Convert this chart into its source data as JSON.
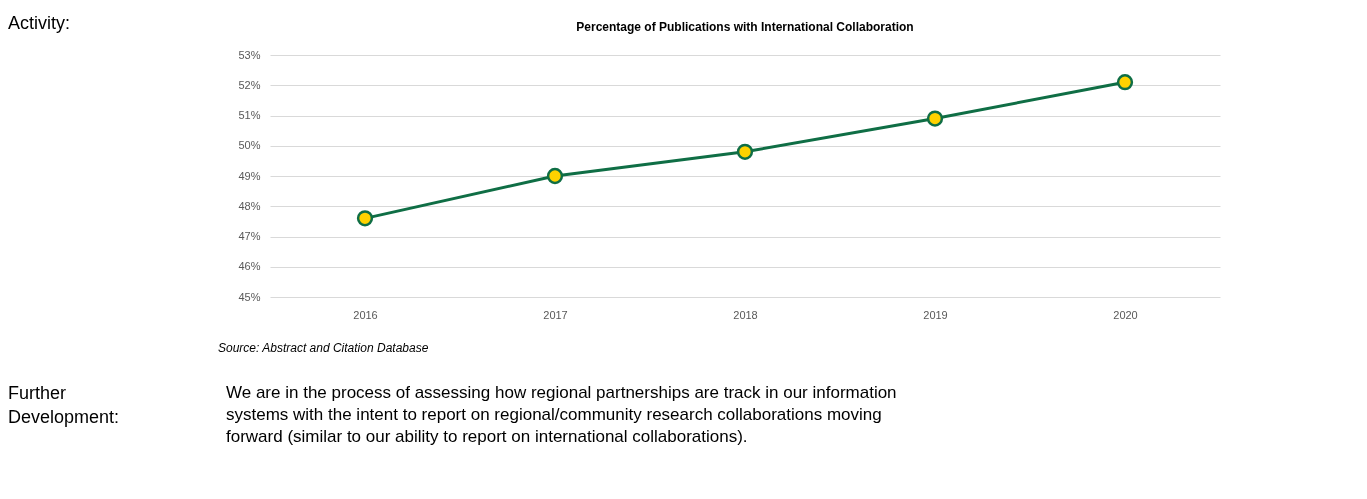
{
  "chart_data": {
    "type": "line",
    "title": "Percentage of Publications with International Collaboration",
    "categories": [
      "2016",
      "2017",
      "2018",
      "2019",
      "2020"
    ],
    "series": [
      {
        "color": "#0f6e45",
        "values": [
          47.6,
          49.0,
          49.8,
          50.9,
          52.1
        ]
      }
    ],
    "ylim": [
      45,
      53
    ],
    "yticks": [
      {
        "value": 45,
        "label": "45%"
      },
      {
        "value": 46,
        "label": "46%"
      },
      {
        "value": 47,
        "label": "47%"
      },
      {
        "value": 48,
        "label": "48%"
      },
      {
        "value": 49,
        "label": "49%"
      },
      {
        "value": 50,
        "label": "50%"
      },
      {
        "value": 51,
        "label": "51%"
      },
      {
        "value": 52,
        "label": "52%"
      },
      {
        "value": 53,
        "label": "53%"
      }
    ],
    "grid": "y",
    "marker": "circle",
    "line_style": "solid",
    "annotations": [
      "Activity:",
      "Source: Abstract and Citation Database",
      "Further Development:",
      "We are in the process of assessing how regional partnerships are track in our information systems with the intent to report on regional/community research collaborations moving forward (similar to our ability to report on international collaborations)."
    ]
  }
}
